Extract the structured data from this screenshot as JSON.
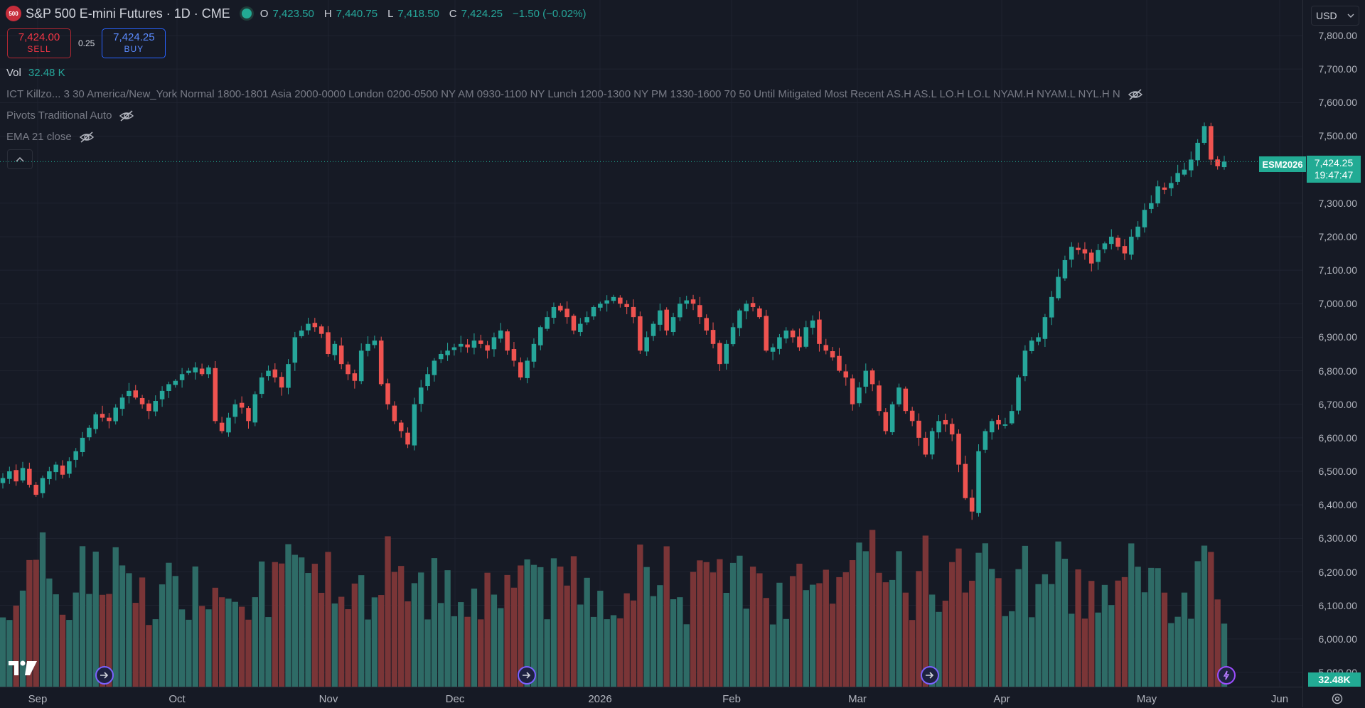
{
  "header": {
    "symbol_badge": "500",
    "symbol_title": "S&P 500 E-mini Futures · 1D · CME",
    "ohlc": [
      {
        "label": "O",
        "value": "7,423.50"
      },
      {
        "label": "H",
        "value": "7,440.75"
      },
      {
        "label": "L",
        "value": "7,418.50"
      },
      {
        "label": "C",
        "value": "7,424.25"
      }
    ],
    "change": "−1.50 (−0.02%)"
  },
  "trade": {
    "sell_price": "7,424.00",
    "sell_label": "SELL",
    "spread": "0.25",
    "buy_price": "7,424.25",
    "buy_label": "BUY"
  },
  "indicators": {
    "vol_label": "Vol",
    "vol_value": "32.48 K",
    "killzones": "ICT Killzo... 3 30 America/New_York Normal 1800-1801 Asia 2000-0000 London 0200-0500 NY AM 0930-1100 NY Lunch 1200-1300 NY PM 1330-1600 70 50 Until Mitigated Most Recent AS.H AS.L LO.H LO.L NYAM.H NYAM.L NYL.H N",
    "pivots": "Pivots Traditional Auto",
    "ema": "EMA 21 close"
  },
  "price_axis": {
    "currency": "USD",
    "ticks": [
      "7,800.00",
      "7,700.00",
      "7,600.00",
      "7,500.00",
      "7,300.00",
      "7,200.00",
      "7,100.00",
      "7,000.00",
      "6,900.00",
      "6,800.00",
      "6,700.00",
      "6,600.00",
      "6,500.00",
      "6,400.00",
      "6,300.00",
      "6,200.00",
      "6,100.00",
      "6,000.00",
      "5,900.00"
    ],
    "symbol_tag": "ESM2026",
    "last_price": "7,424.25",
    "countdown": "19:47:47",
    "volume_tag": "32.48K"
  },
  "time_axis": {
    "labels": [
      "Sep",
      "Oct",
      "Nov",
      "Dec",
      "2026",
      "Feb",
      "Mar",
      "Apr",
      "May",
      "Jun"
    ]
  },
  "colors": {
    "up": "#26a69a",
    "down": "#ef5350",
    "up_volume": "#2e6b66",
    "down_volume": "#7a3537",
    "background": "#161a25"
  },
  "chart_data": {
    "type": "candlestick",
    "symbol": "ESM2026",
    "ylim": [
      5900,
      7800
    ],
    "close_series": [
      6480,
      6500,
      6470,
      6510,
      6460,
      6430,
      6480,
      6500,
      6520,
      6490,
      6530,
      6560,
      6600,
      6630,
      6670,
      6660,
      6650,
      6690,
      6720,
      6740,
      6720,
      6700,
      6680,
      6710,
      6740,
      6760,
      6770,
      6790,
      6800,
      6810,
      6790,
      6810,
      6650,
      6620,
      6660,
      6700,
      6690,
      6650,
      6730,
      6780,
      6800,
      6780,
      6750,
      6820,
      6900,
      6920,
      6940,
      6930,
      6910,
      6850,
      6880,
      6820,
      6790,
      6770,
      6860,
      6880,
      6890,
      6760,
      6700,
      6650,
      6620,
      6580,
      6700,
      6750,
      6790,
      6830,
      6850,
      6860,
      6870,
      6880,
      6870,
      6890,
      6880,
      6860,
      6900,
      6920,
      6860,
      6830,
      6780,
      6830,
      6880,
      6930,
      6960,
      6990,
      6980,
      6960,
      6920,
      6940,
      6960,
      6990,
      7000,
      7010,
      7020,
      7000,
      6990,
      6960,
      6860,
      6900,
      6940,
      6980,
      6920,
      6960,
      7000,
      7010,
      7000,
      6960,
      6920,
      6880,
      6820,
      6880,
      6930,
      6980,
      7000,
      6990,
      6960,
      6860,
      6870,
      6900,
      6920,
      6900,
      6870,
      6930,
      6950,
      6880,
      6860,
      6840,
      6800,
      6780,
      6700,
      6750,
      6800,
      6760,
      6680,
      6620,
      6700,
      6750,
      6680,
      6650,
      6600,
      6550,
      6620,
      6650,
      6640,
      6610,
      6520,
      6420,
      6380,
      6560,
      6620,
      6650,
      6640,
      6640,
      6680,
      6780,
      6860,
      6890,
      6900,
      6960,
      7020,
      7080,
      7130,
      7170,
      7160,
      7150,
      7120,
      7160,
      7180,
      7200,
      7170,
      7150,
      7200,
      7230,
      7280,
      7300,
      7350,
      7340,
      7360,
      7390,
      7400,
      7430,
      7480,
      7530,
      7430,
      7410,
      7424
    ],
    "volume_range_k": [
      0,
      45
    ]
  }
}
